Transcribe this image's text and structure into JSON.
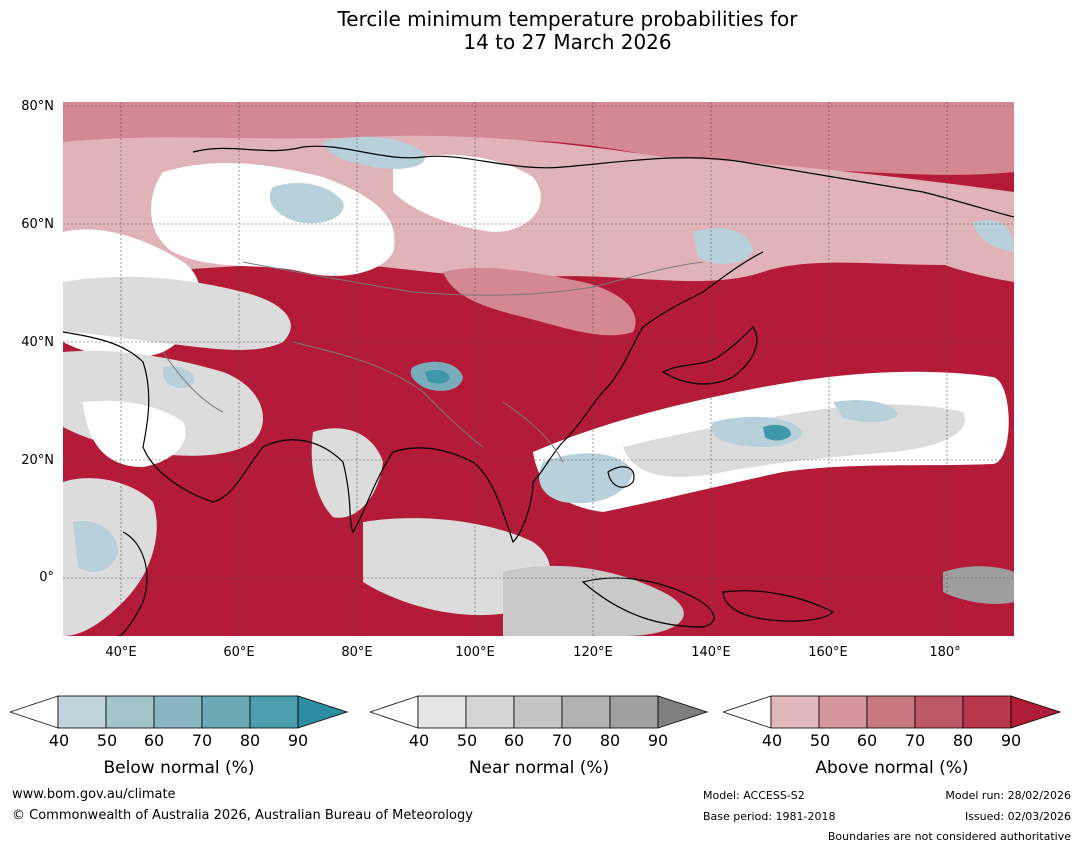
{
  "title": {
    "line1": "Tercile minimum temperature probabilities for",
    "line2": "14 to 27 March 2026"
  },
  "map": {
    "lat_labels": [
      "80°N",
      "60°N",
      "40°N",
      "20°N",
      "0°"
    ],
    "lon_labels": [
      "40°E",
      "60°E",
      "80°E",
      "100°E",
      "120°E",
      "140°E",
      "160°E",
      "180°"
    ],
    "region": "Asia",
    "colors": {
      "land_above_strong": "#b31b38",
      "above_70": "#c95e6c",
      "above_60": "#d48893",
      "above_50": "#e0b3b8",
      "near_50": "#dcdcdc",
      "near_60": "#c9c9c9",
      "below_50": "#b7d0d9",
      "below_70": "#78acbb",
      "below_80": "#3e98aa",
      "coast": "#000000",
      "border": "#7a7a7a"
    }
  },
  "colorbars": {
    "tick_labels": [
      "40",
      "50",
      "60",
      "70",
      "80",
      "90"
    ],
    "below": {
      "label": "Below normal (%)",
      "colors": [
        "#ffffff",
        "#bfd3da",
        "#a4c4cc",
        "#89b5c1",
        "#6aa9b5",
        "#4a9eae",
        "#2b8d9f"
      ]
    },
    "near": {
      "label": "Near normal (%)",
      "colors": [
        "#ffffff",
        "#e6e6e6",
        "#d4d4d4",
        "#c4c4c4",
        "#b2b2b2",
        "#a0a0a0",
        "#7f7f7f"
      ]
    },
    "above": {
      "label": "Above normal (%)",
      "colors": [
        "#ffffff",
        "#e2b7bc",
        "#d5959d",
        "#c97780",
        "#bd5766",
        "#b8374b",
        "#b01b37"
      ]
    }
  },
  "footer": {
    "website": "www.bom.gov.au/climate",
    "copyright": "© Commonwealth of Australia 2026, Australian Bureau of Meteorology",
    "model": "Model: ACCESS-S2",
    "base_period": "Base period: 1981-2018",
    "model_run": "Model run: 28/02/2026",
    "issued": "Issued: 02/03/2026",
    "disclaimer": "Boundaries are not considered authoritative"
  }
}
